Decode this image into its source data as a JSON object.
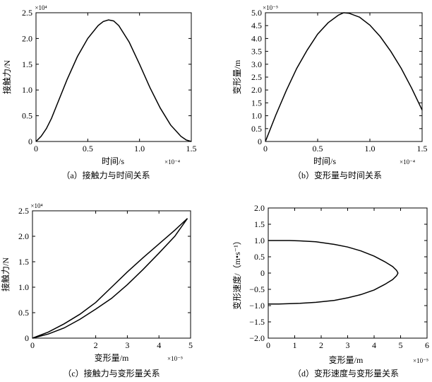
{
  "chart_data": [
    {
      "type": "line",
      "caption": "（a）接触力与时间关系",
      "xlabel": "时间/s",
      "ylabel": "接触力/N",
      "x_multiplier": "×10⁻⁴",
      "y_multiplier": "×10⁴",
      "xlim": [
        0,
        1.5
      ],
      "ylim": [
        0,
        2.5
      ],
      "xticks": [
        "0",
        "0.5",
        "1.0",
        "1.5"
      ],
      "yticks": [
        "0",
        "0.5",
        "1.0",
        "1.5",
        "2.0",
        "2.5"
      ],
      "series": [
        {
          "x": [
            0,
            0.05,
            0.1,
            0.15,
            0.2,
            0.3,
            0.4,
            0.5,
            0.6,
            0.65,
            0.7,
            0.75,
            0.8,
            0.9,
            1.0,
            1.1,
            1.2,
            1.3,
            1.4,
            1.45,
            1.5
          ],
          "y": [
            0,
            0.1,
            0.25,
            0.45,
            0.7,
            1.2,
            1.65,
            2.0,
            2.25,
            2.33,
            2.36,
            2.34,
            2.25,
            1.93,
            1.5,
            1.05,
            0.65,
            0.32,
            0.1,
            0.03,
            0
          ]
        }
      ]
    },
    {
      "type": "line",
      "caption": "（b）变形量与时间关系",
      "xlabel": "时间/s",
      "ylabel": "变形量/m",
      "x_multiplier": "×10⁻⁴",
      "y_multiplier": "×10⁻⁵",
      "xlim": [
        0,
        1.5
      ],
      "ylim": [
        0,
        5.0
      ],
      "xticks": [
        "0",
        "0.5",
        "1.0",
        "1.5"
      ],
      "yticks": [
        "0",
        "0.5",
        "1.0",
        "1.5",
        "2.0",
        "2.5",
        "3.0",
        "3.5",
        "4.0",
        "4.5",
        "5.0"
      ],
      "series": [
        {
          "x": [
            0,
            0.1,
            0.2,
            0.3,
            0.4,
            0.5,
            0.6,
            0.7,
            0.75,
            0.8,
            0.9,
            1.0,
            1.1,
            1.2,
            1.3,
            1.4,
            1.5
          ],
          "y": [
            0,
            1.03,
            1.98,
            2.84,
            3.55,
            4.17,
            4.61,
            4.91,
            5.0,
            4.98,
            4.83,
            4.52,
            4.07,
            3.5,
            2.84,
            2.07,
            1.22
          ]
        }
      ]
    },
    {
      "type": "line",
      "caption": "（c）接触力与变形量关系",
      "xlabel": "变形量/m",
      "ylabel": "接触力/N",
      "x_multiplier": "×10⁻⁵",
      "y_multiplier": "×10⁴",
      "xlim": [
        0,
        5
      ],
      "ylim": [
        0,
        2.5
      ],
      "xticks": [
        "0",
        "2",
        "3",
        "4",
        "5"
      ],
      "xtick_values": [
        0,
        2,
        3,
        4,
        5
      ],
      "yticks": [
        "0",
        "0.5",
        "1.0",
        "1.5",
        "2.0",
        "2.5"
      ],
      "series": [
        {
          "name": "",
          "x": [
            0,
            0.5,
            1.0,
            1.5,
            2.0,
            2.5,
            3.0,
            3.5,
            4.0,
            4.5,
            4.9
          ],
          "y": [
            0,
            0.12,
            0.28,
            0.47,
            0.7,
            1.0,
            1.3,
            1.58,
            1.85,
            2.12,
            2.35
          ]
        },
        {
          "name": "",
          "x": [
            0,
            0.5,
            1.0,
            1.5,
            2.0,
            2.5,
            3.0,
            3.5,
            4.0,
            4.5,
            4.9
          ],
          "y": [
            0,
            0.08,
            0.2,
            0.37,
            0.57,
            0.78,
            1.05,
            1.35,
            1.67,
            2.0,
            2.35
          ]
        }
      ]
    },
    {
      "type": "line",
      "caption": "（d）变形速度与变形量关系",
      "xlabel": "变形量/m",
      "ylabel": "变形速度/（m•s⁻¹）",
      "x_multiplier": "×10⁻⁵",
      "y_multiplier": "",
      "xlim": [
        0,
        6
      ],
      "ylim": [
        -2.0,
        2.0
      ],
      "xticks": [
        "0",
        "1",
        "2",
        "3",
        "4",
        "5",
        "6"
      ],
      "yticks": [
        "−2.0",
        "−1.5",
        "−1.0",
        "−0.5",
        "0",
        "0.5",
        "1.0",
        "1.5",
        "2.0"
      ],
      "series": [
        {
          "x": [
            0,
            0.4,
            0.8,
            1.2,
            1.8,
            2.5,
            3.0,
            3.5,
            4.0,
            4.4,
            4.7,
            4.85,
            4.9,
            4.85,
            4.7,
            4.4,
            4.0,
            3.5,
            3.0,
            2.5,
            1.8,
            1.2,
            0.8,
            0.4,
            0
          ],
          "y": [
            1.0,
            1.0,
            1.0,
            0.99,
            0.96,
            0.88,
            0.8,
            0.68,
            0.52,
            0.35,
            0.2,
            0.08,
            0,
            -0.08,
            -0.2,
            -0.35,
            -0.52,
            -0.66,
            -0.76,
            -0.84,
            -0.9,
            -0.93,
            -0.94,
            -0.95,
            -0.95
          ]
        }
      ]
    }
  ]
}
